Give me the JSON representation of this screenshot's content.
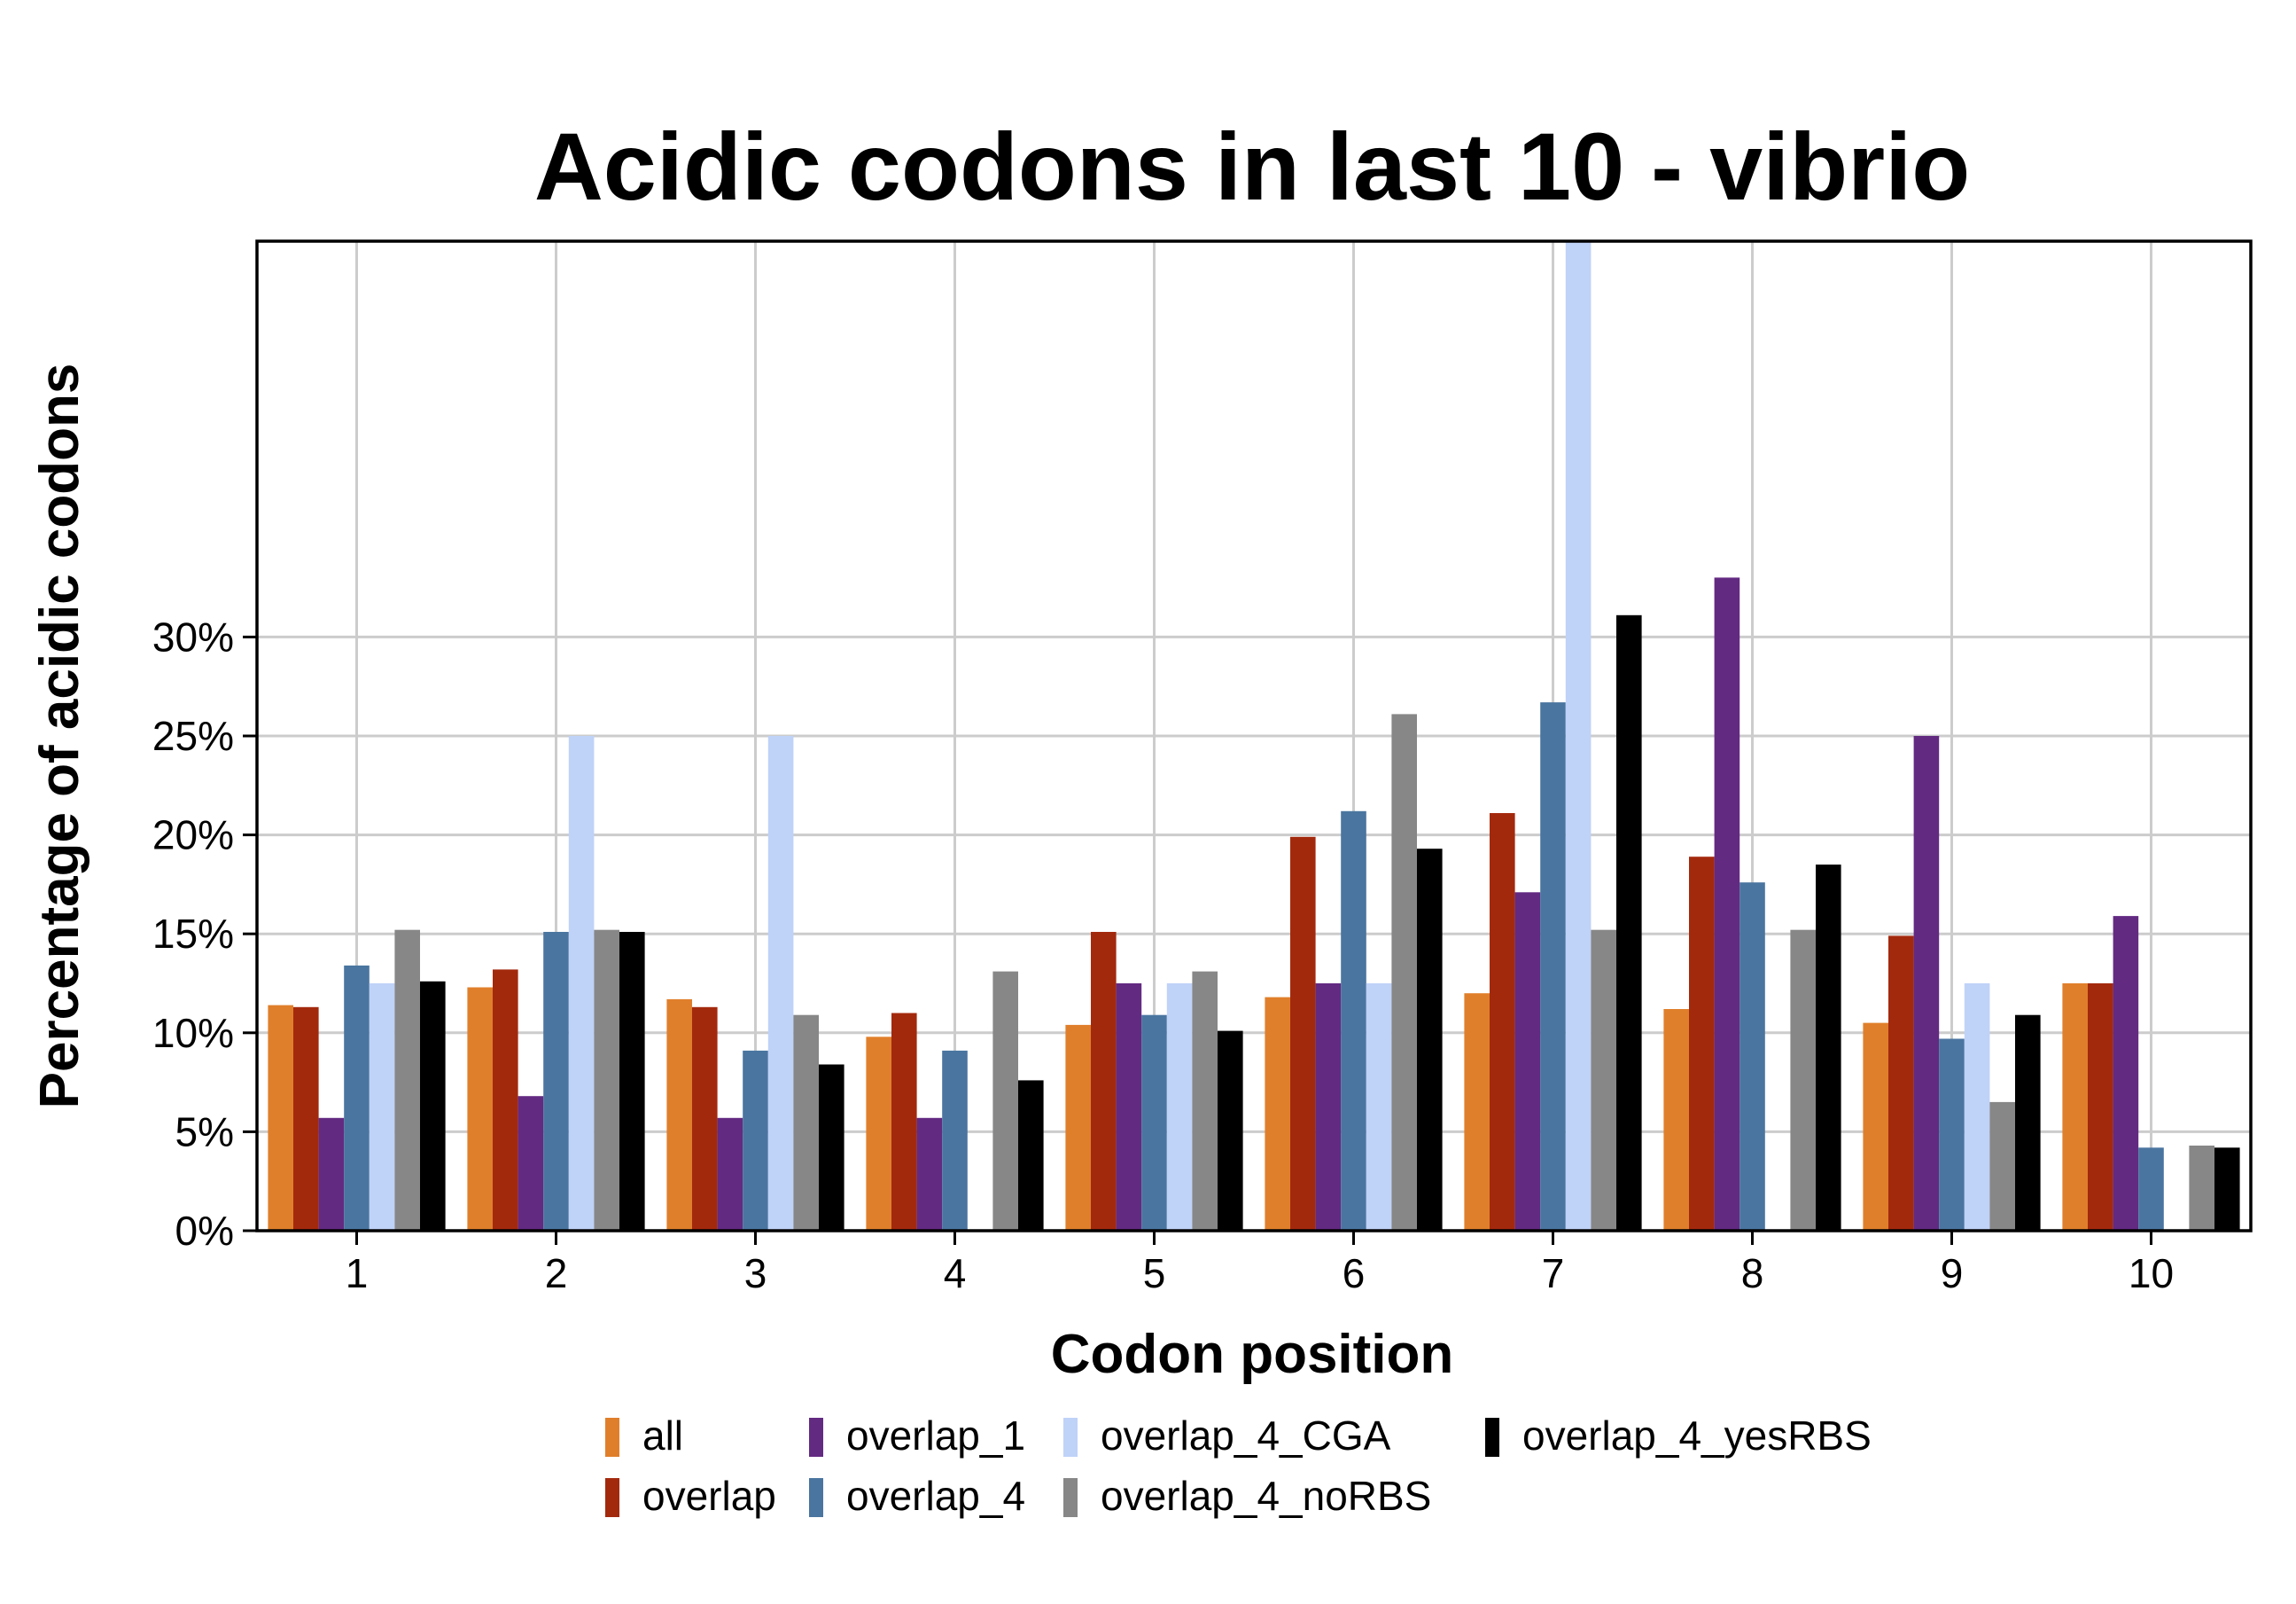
{
  "chart_data": {
    "type": "bar",
    "title": "Acidic codons in last 10 - vibrio",
    "xlabel": "Codon position",
    "ylabel": "Percentage of acidic codons",
    "categories": [
      "1",
      "2",
      "3",
      "4",
      "5",
      "6",
      "7",
      "8",
      "9",
      "10"
    ],
    "yticks": [
      0,
      5,
      10,
      15,
      20,
      25,
      30
    ],
    "ytick_labels": [
      "0%",
      "5%",
      "10%",
      "15%",
      "20%",
      "25%",
      "30%"
    ],
    "ylim": [
      0,
      50
    ],
    "grid": true,
    "legend_position": "bottom",
    "series": [
      {
        "name": "all",
        "color": "#e07f2b",
        "values": [
          11.4,
          12.3,
          11.7,
          9.8,
          10.4,
          11.8,
          12.0,
          11.2,
          10.5,
          12.5
        ]
      },
      {
        "name": "overlap",
        "color": "#a3290d",
        "values": [
          11.3,
          13.2,
          11.3,
          11.0,
          15.1,
          19.9,
          21.1,
          18.9,
          14.9,
          12.5
        ]
      },
      {
        "name": "overlap_1",
        "color": "#632a82",
        "values": [
          5.7,
          6.8,
          5.7,
          5.7,
          12.5,
          12.5,
          17.1,
          33.0,
          25.0,
          15.9
        ]
      },
      {
        "name": "overlap_4",
        "color": "#4a75a0",
        "values": [
          13.4,
          15.1,
          9.1,
          9.1,
          10.9,
          21.2,
          26.7,
          17.6,
          9.7,
          4.2
        ]
      },
      {
        "name": "overlap_4_CGA",
        "color": "#bfd2f8",
        "values": [
          12.5,
          25.0,
          25.0,
          0,
          12.5,
          12.5,
          50.0,
          0,
          12.5,
          0
        ]
      },
      {
        "name": "overlap_4_noRBS",
        "color": "#878787",
        "values": [
          15.2,
          15.2,
          10.9,
          13.1,
          13.1,
          26.1,
          15.2,
          15.2,
          6.5,
          4.3
        ]
      },
      {
        "name": "overlap_4_yesRBS",
        "color": "#000000",
        "values": [
          12.6,
          15.1,
          8.4,
          7.6,
          10.1,
          19.3,
          31.1,
          18.5,
          10.9,
          4.2
        ]
      }
    ]
  }
}
